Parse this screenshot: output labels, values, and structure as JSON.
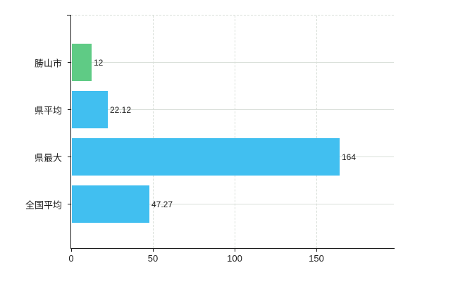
{
  "chart_data": {
    "type": "bar",
    "orientation": "horizontal",
    "title": "",
    "categories": [
      "勝山市",
      "県平均",
      "県最大",
      "全国平均"
    ],
    "values": [
      12,
      22.12,
      164,
      47.27
    ],
    "value_labels": [
      "12",
      "22.12",
      "164",
      "47.27"
    ],
    "bar_colors": [
      "#5fcb85",
      "#41bff0",
      "#41bff0",
      "#41bff0"
    ],
    "x_ticks": [
      0,
      50,
      100,
      150
    ],
    "x_tick_labels": [
      "0",
      "50",
      "100",
      "150"
    ],
    "xlim": [
      0,
      197
    ],
    "grid": true,
    "legend": "none",
    "axis_color": "#1c1c1c",
    "grid_color": "#d9dfd9",
    "text_color": "#1c1c1c",
    "background": "#ffffff"
  }
}
